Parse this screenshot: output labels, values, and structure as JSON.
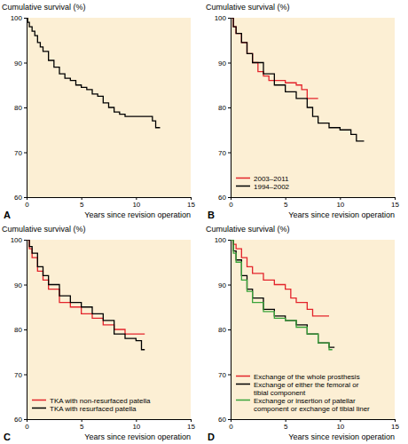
{
  "chart_data": [
    {
      "type": "line",
      "title": "A",
      "y_label": "Cumulative survival (%)",
      "x_label": "Years since revision operation",
      "xlim": [
        0,
        15
      ],
      "xticks": [
        0,
        5,
        10,
        15
      ],
      "ylim": [
        60,
        100
      ],
      "yticks": [
        60,
        70,
        80,
        90,
        100
      ],
      "line_style": "step",
      "series": [
        {
          "color": "#000000",
          "x": [
            0,
            0.1,
            0.25,
            0.5,
            0.75,
            1,
            1.25,
            1.5,
            2,
            2.5,
            3,
            3.5,
            4,
            4.5,
            5,
            5.5,
            6,
            6.5,
            7,
            7.5,
            8,
            8.5,
            9,
            10,
            11,
            11.5,
            11.8,
            12.2
          ],
          "values": [
            100,
            99,
            98,
            97,
            96,
            94.5,
            93.5,
            92.5,
            90.5,
            89,
            87.5,
            86.5,
            86,
            85,
            84.5,
            84,
            83,
            82.5,
            81,
            80,
            79,
            78.5,
            78,
            78,
            78,
            77,
            75.5,
            75.5
          ]
        }
      ]
    },
    {
      "type": "line",
      "title": "B",
      "y_label": "Cumulative survival (%)",
      "x_label": "Years since revision operation",
      "xlim": [
        0,
        15
      ],
      "xticks": [
        0,
        5,
        10,
        15
      ],
      "ylim": [
        60,
        100
      ],
      "yticks": [
        60,
        70,
        80,
        90,
        100
      ],
      "line_style": "step",
      "legend": "lower left",
      "series": [
        {
          "name": "2003–2011",
          "color": "#e3242b",
          "x": [
            0,
            0.25,
            0.5,
            1,
            1.5,
            2,
            2.5,
            3,
            3.5,
            4,
            5,
            6,
            6.5,
            7,
            8
          ],
          "values": [
            100,
            98,
            96.5,
            94.5,
            92,
            90,
            88,
            87,
            86,
            86,
            85.5,
            85,
            84,
            82,
            82
          ]
        },
        {
          "name": "1994–2002",
          "color": "#000000",
          "x": [
            0,
            0.25,
            0.5,
            1,
            1.5,
            2,
            3,
            4,
            5,
            6,
            7,
            7.5,
            8,
            9,
            10,
            11,
            11.5,
            12.2
          ],
          "values": [
            100,
            98,
            96.5,
            94.5,
            92,
            90,
            87.5,
            85,
            83.5,
            82,
            80,
            78,
            76.5,
            75.5,
            75,
            74,
            72.5,
            72.5
          ]
        }
      ]
    },
    {
      "type": "line",
      "title": "C",
      "y_label": "Cumulative survival (%)",
      "x_label": "Years since revision operation",
      "xlim": [
        0,
        15
      ],
      "xticks": [
        0,
        5,
        10,
        15
      ],
      "ylim": [
        60,
        100
      ],
      "yticks": [
        60,
        70,
        80,
        90,
        100
      ],
      "line_style": "step",
      "legend": "lower left",
      "series": [
        {
          "name": "TKA with non-resurfaced patella",
          "color": "#e3242b",
          "x": [
            0,
            0.25,
            0.5,
            1,
            1.5,
            2,
            3,
            4,
            5,
            6,
            7,
            8,
            9,
            10,
            10.8
          ],
          "values": [
            100,
            98,
            96,
            93,
            91,
            89,
            86,
            85,
            83.5,
            82.5,
            81,
            80,
            79,
            79,
            79
          ]
        },
        {
          "name": "TKA with resurfaced patella",
          "color": "#000000",
          "x": [
            0,
            0.25,
            0.5,
            1,
            1.5,
            2,
            3,
            4,
            5,
            6,
            7,
            8,
            9,
            10,
            10.5,
            10.8
          ],
          "values": [
            100,
            98.5,
            97,
            94,
            92,
            90,
            87.5,
            86,
            85,
            83.5,
            82,
            79,
            78,
            77.5,
            75.5,
            75.5
          ]
        }
      ]
    },
    {
      "type": "line",
      "title": "D",
      "y_label": "Cumulative survival (%)",
      "x_label": "Years since revision operation",
      "xlim": [
        0,
        15
      ],
      "xticks": [
        0,
        5,
        10,
        15
      ],
      "ylim": [
        60,
        100
      ],
      "yticks": [
        60,
        70,
        80,
        90,
        100
      ],
      "line_style": "step",
      "legend": "lower left",
      "series": [
        {
          "name": "Exchange of the whole prosthesis",
          "color": "#e3242b",
          "x": [
            0,
            0.25,
            0.5,
            1,
            1.5,
            2,
            3,
            4,
            5,
            5.5,
            6,
            7,
            7.5,
            9
          ],
          "values": [
            100,
            99,
            98,
            96,
            94,
            92.5,
            91,
            90,
            89,
            87,
            86,
            84.5,
            83,
            83
          ]
        },
        {
          "name": "Exchange of either the femoral or\ntibial component",
          "color": "#000000",
          "x": [
            0,
            0.25,
            0.5,
            1,
            1.5,
            2,
            3,
            4,
            5,
            6,
            7,
            8,
            9,
            9.5
          ],
          "values": [
            100,
            97.5,
            95.5,
            92,
            89,
            87,
            84.5,
            83,
            82,
            81,
            79,
            77,
            76,
            76
          ]
        },
        {
          "name": "Exchange or insertion of patellar\ncomponent or exchange of tibial liner",
          "color": "#3aa43a",
          "x": [
            0,
            0.25,
            0.5,
            1,
            1.5,
            2,
            3,
            4,
            5,
            6,
            7,
            8,
            9,
            9.3
          ],
          "values": [
            100,
            97,
            95,
            91,
            88.5,
            86,
            84,
            82.5,
            82,
            80.5,
            79,
            77,
            75.5,
            75.5
          ]
        }
      ]
    }
  ]
}
